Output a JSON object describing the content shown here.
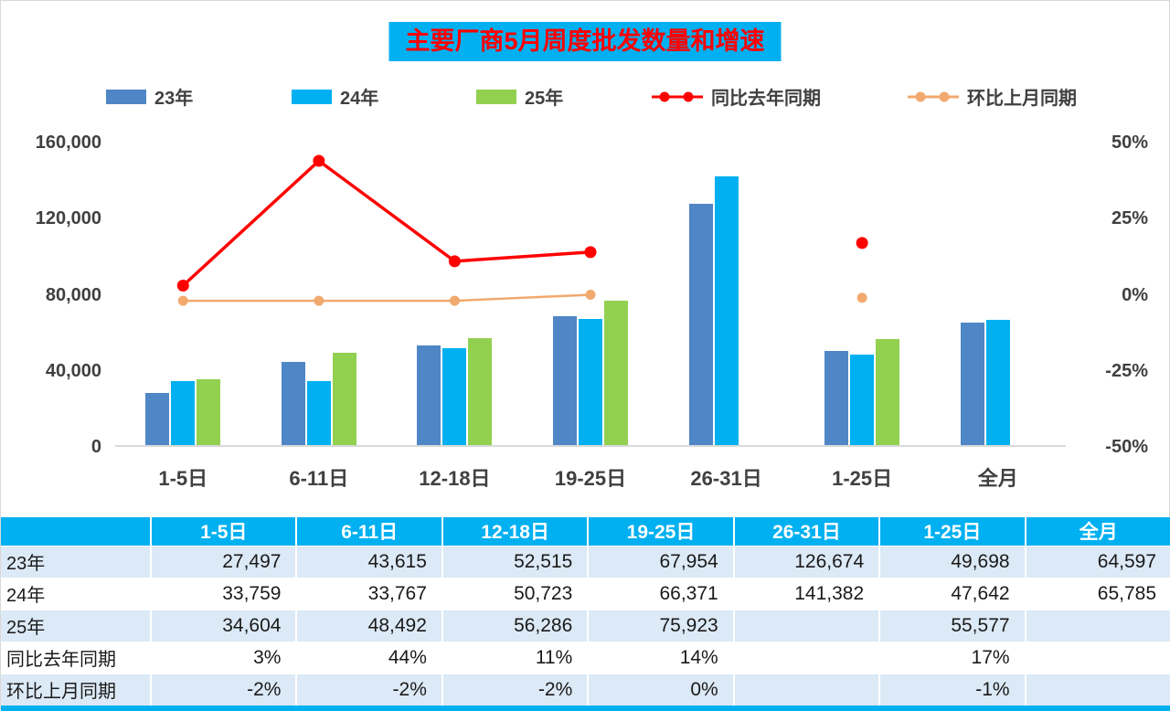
{
  "title": "主要厂商5月周度批发数量和增速",
  "colors": {
    "y23": "#4F86C6",
    "y24": "#00B0F0",
    "y25": "#92D050",
    "yoy": "#FF0000",
    "mom": "#F2A96E",
    "header_bg": "#00B0F0",
    "title_bg": "#00B0F0",
    "title_text": "#FF0000",
    "row_alt_bg": "#DCE9F6"
  },
  "legend": [
    {
      "label": "23年",
      "type": "swatch",
      "color": "#4F86C6"
    },
    {
      "label": "24年",
      "type": "swatch",
      "color": "#00B0F0"
    },
    {
      "label": "25年",
      "type": "swatch",
      "color": "#92D050"
    },
    {
      "label": "同比去年同期",
      "type": "line",
      "color": "#FF0000"
    },
    {
      "label": "环比上月同期",
      "type": "line",
      "color": "#F2A96E"
    }
  ],
  "chart_data": {
    "type": "bar+line",
    "title": "主要厂商5月周度批发数量和增速",
    "categories": [
      "1-5日",
      "6-11日",
      "12-18日",
      "19-25日",
      "26-31日",
      "1-25日",
      "全月"
    ],
    "bar_series": [
      {
        "name": "23年",
        "color": "#4F86C6",
        "values": [
          27497,
          43615,
          52515,
          67954,
          126674,
          49698,
          64597
        ]
      },
      {
        "name": "24年",
        "color": "#00B0F0",
        "values": [
          33759,
          33767,
          50723,
          66371,
          141382,
          47642,
          65785
        ]
      },
      {
        "name": "25年",
        "color": "#92D050",
        "values": [
          34604,
          48492,
          56286,
          75923,
          null,
          55577,
          null
        ]
      }
    ],
    "line_series": [
      {
        "name": "同比去年同期",
        "color": "#FF0000",
        "values": [
          3,
          44,
          11,
          14,
          null,
          17,
          null
        ]
      },
      {
        "name": "环比上月同期",
        "color": "#F2A96E",
        "values": [
          -2,
          -2,
          -2,
          0,
          null,
          -1,
          null
        ]
      }
    ],
    "left_axis": {
      "min": 0,
      "max": 160000,
      "ticks": [
        "0",
        "40,000",
        "80,000",
        "120,000",
        "160,000"
      ]
    },
    "right_axis": {
      "min": -50,
      "max": 50,
      "ticks": [
        "-50%",
        "-25%",
        "0%",
        "25%",
        "50%"
      ]
    },
    "legend_position": "top",
    "grid": "off"
  },
  "table": {
    "header": [
      "",
      "1-5日",
      "6-11日",
      "12-18日",
      "19-25日",
      "26-31日",
      "1-25日",
      "全月"
    ],
    "rows": [
      {
        "label": "23年",
        "cells": [
          "27,497",
          "43,615",
          "52,515",
          "67,954",
          "126,674",
          "49,698",
          "64,597"
        ]
      },
      {
        "label": "24年",
        "cells": [
          "33,759",
          "33,767",
          "50,723",
          "66,371",
          "141,382",
          "47,642",
          "65,785"
        ]
      },
      {
        "label": "25年",
        "cells": [
          "34,604",
          "48,492",
          "56,286",
          "75,923",
          "",
          "55,577",
          ""
        ]
      },
      {
        "label": "同比去年同期",
        "cells": [
          "3%",
          "44%",
          "11%",
          "14%",
          "",
          "17%",
          ""
        ]
      },
      {
        "label": "环比上月同期",
        "cells": [
          "-2%",
          "-2%",
          "-2%",
          "0%",
          "",
          "-1%",
          ""
        ]
      }
    ]
  }
}
